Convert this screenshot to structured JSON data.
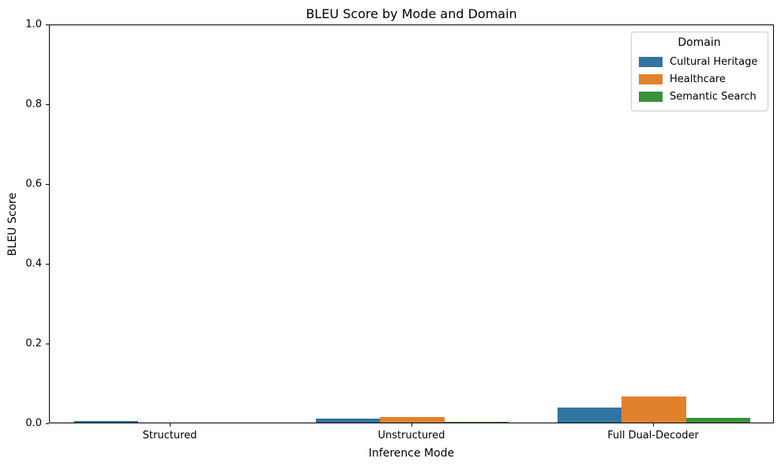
{
  "chart_data": {
    "type": "bar",
    "title": "BLEU Score by Mode and Domain",
    "xlabel": "Inference Mode",
    "ylabel": "BLEU Score",
    "categories": [
      "Structured",
      "Unstructured",
      "Full Dual-Decoder"
    ],
    "series": [
      {
        "name": "Cultural Heritage",
        "color": "#3274a1",
        "values": [
          0.004,
          0.009,
          0.037
        ]
      },
      {
        "name": "Healthcare",
        "color": "#e1812c",
        "values": [
          0.0,
          0.013,
          0.065
        ]
      },
      {
        "name": "Semantic Search",
        "color": "#3a923a",
        "values": [
          0.0,
          0.003,
          0.012
        ]
      }
    ],
    "ylim": [
      0.0,
      1.0
    ],
    "yticks": [
      "0.0",
      "0.2",
      "0.4",
      "0.6",
      "0.8",
      "1.0"
    ],
    "grid": false,
    "legend": {
      "title": "Domain",
      "position": "upper-right"
    }
  }
}
